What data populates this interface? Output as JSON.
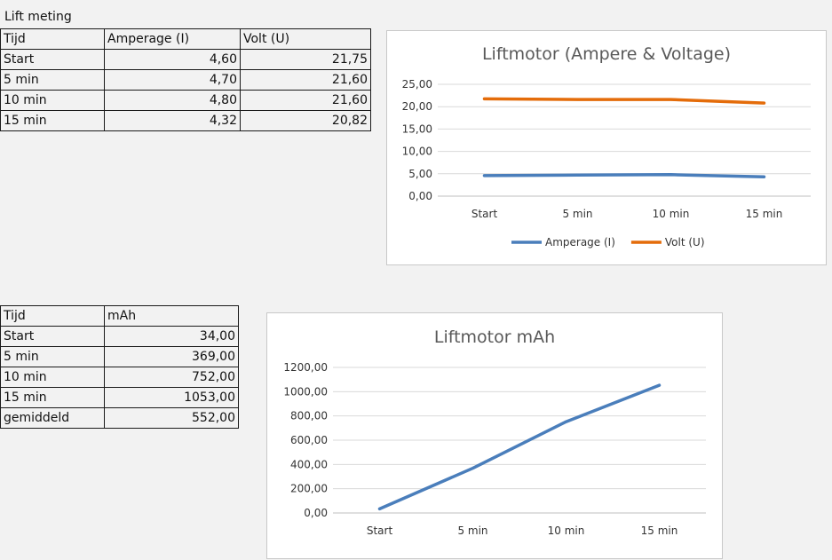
{
  "sheet": {
    "title": "Lift meting",
    "table1": {
      "headers": [
        "Tijd",
        "Amperage (I)",
        "Volt (U)"
      ],
      "rows": [
        [
          "Start",
          "4,60",
          "21,75"
        ],
        [
          "5 min",
          "4,70",
          "21,60"
        ],
        [
          "10 min",
          "4,80",
          "21,60"
        ],
        [
          "15 min",
          "4,32",
          "20,82"
        ]
      ]
    },
    "table2": {
      "headers": [
        "Tijd",
        "mAh"
      ],
      "rows": [
        [
          "Start",
          "34,00"
        ],
        [
          "5 min",
          "369,00"
        ],
        [
          "10 min",
          "752,00"
        ],
        [
          "15 min",
          "1053,00"
        ],
        [
          "gemiddeld",
          "552,00"
        ]
      ]
    }
  },
  "chart_data": [
    {
      "type": "line",
      "title": "Liftmotor (Ampere & Voltage)",
      "categories": [
        "Start",
        "5 min",
        "10 min",
        "15 min"
      ],
      "series": [
        {
          "name": "Amperage (I)",
          "values": [
            4.6,
            4.7,
            4.8,
            4.32
          ],
          "color": "#4a7ebb"
        },
        {
          "name": "Volt (U)",
          "values": [
            21.75,
            21.6,
            21.6,
            20.82
          ],
          "color": "#e46c0a"
        }
      ],
      "ylim": [
        0,
        25
      ],
      "yticks": [
        "0,00",
        "5,00",
        "10,00",
        "15,00",
        "20,00",
        "25,00"
      ],
      "grid": true,
      "legend": "bottom"
    },
    {
      "type": "line",
      "title": "Liftmotor mAh",
      "categories": [
        "Start",
        "5 min",
        "10 min",
        "15 min"
      ],
      "series": [
        {
          "values": [
            34,
            369,
            752,
            1053
          ],
          "color": "#4a7ebb"
        }
      ],
      "ylim": [
        0,
        1200
      ],
      "yticks": [
        "0,00",
        "200,00",
        "400,00",
        "600,00",
        "800,00",
        "1000,00",
        "1200,00"
      ],
      "grid": true,
      "legend": "none"
    }
  ]
}
